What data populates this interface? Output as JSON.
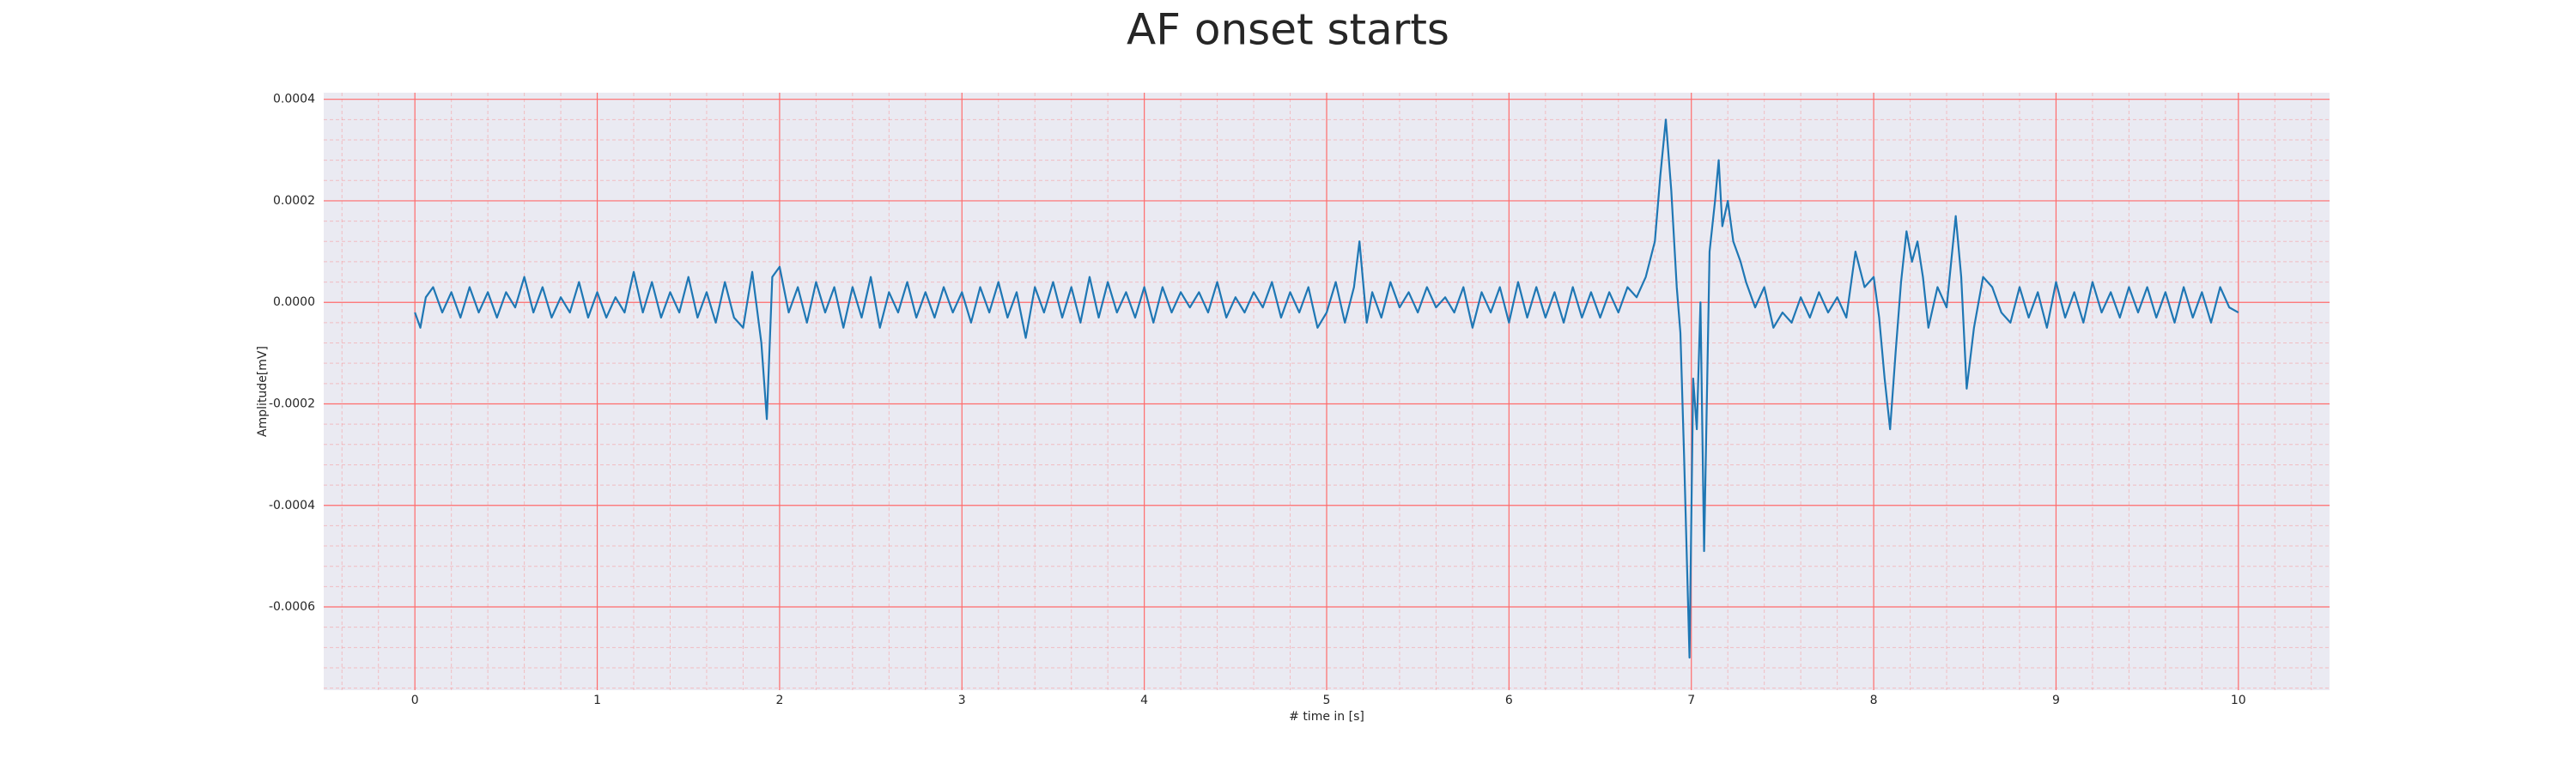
{
  "chart_data": {
    "type": "line",
    "title": "AF onset starts",
    "xlabel": "# time in [s]",
    "ylabel": "Amplitude[mV]",
    "xlim": [
      -0.5,
      10.5
    ],
    "ylim": [
      -0.000764,
      0.000413
    ],
    "xticks": [
      0,
      1,
      2,
      3,
      4,
      5,
      6,
      7,
      8,
      9,
      10
    ],
    "yticks": [
      0.0004,
      0.0002,
      {
        "value": 0,
        "label": "0.0000"
      },
      -0.0002,
      -0.0004,
      -0.0006
    ],
    "grid": true,
    "grid_color": "#ff6b6b",
    "minor_grid": true,
    "minor_divisions": 5,
    "background": "#eaeaf2",
    "series": [
      {
        "color": "#1f77b4",
        "x": [
          0,
          0.03,
          0.06,
          0.1,
          0.15,
          0.2,
          0.25,
          0.3,
          0.35,
          0.4,
          0.45,
          0.5,
          0.55,
          0.6,
          0.65,
          0.7,
          0.75,
          0.8,
          0.85,
          0.9,
          0.95,
          1,
          1.05,
          1.1,
          1.15,
          1.2,
          1.25,
          1.3,
          1.35,
          1.4,
          1.45,
          1.5,
          1.55,
          1.6,
          1.65,
          1.7,
          1.75,
          1.8,
          1.85,
          1.9,
          1.93,
          1.96,
          2,
          2.05,
          2.1,
          2.15,
          2.2,
          2.25,
          2.3,
          2.35,
          2.4,
          2.45,
          2.5,
          2.55,
          2.6,
          2.65,
          2.7,
          2.75,
          2.8,
          2.85,
          2.9,
          2.95,
          3,
          3.05,
          3.1,
          3.15,
          3.2,
          3.25,
          3.3,
          3.35,
          3.4,
          3.45,
          3.5,
          3.55,
          3.6,
          3.65,
          3.7,
          3.75,
          3.8,
          3.85,
          3.9,
          3.95,
          4,
          4.05,
          4.1,
          4.15,
          4.2,
          4.25,
          4.3,
          4.35,
          4.4,
          4.45,
          4.5,
          4.55,
          4.6,
          4.65,
          4.7,
          4.75,
          4.8,
          4.85,
          4.9,
          4.95,
          5,
          5.05,
          5.1,
          5.15,
          5.18,
          5.22,
          5.25,
          5.3,
          5.35,
          5.4,
          5.45,
          5.5,
          5.55,
          5.6,
          5.65,
          5.7,
          5.75,
          5.8,
          5.85,
          5.9,
          5.95,
          6,
          6.05,
          6.1,
          6.15,
          6.2,
          6.25,
          6.3,
          6.35,
          6.4,
          6.45,
          6.5,
          6.55,
          6.6,
          6.65,
          6.7,
          6.75,
          6.8,
          6.83,
          6.86,
          6.89,
          6.92,
          6.94,
          6.96,
          6.99,
          7.01,
          7.03,
          7.05,
          7.07,
          7.1,
          7.13,
          7.15,
          7.17,
          7.2,
          7.23,
          7.27,
          7.3,
          7.35,
          7.4,
          7.45,
          7.5,
          7.55,
          7.6,
          7.65,
          7.7,
          7.75,
          7.8,
          7.85,
          7.9,
          7.95,
          8,
          8.03,
          8.06,
          8.09,
          8.12,
          8.15,
          8.18,
          8.21,
          8.24,
          8.27,
          8.3,
          8.35,
          8.4,
          8.45,
          8.48,
          8.51,
          8.55,
          8.6,
          8.65,
          8.7,
          8.75,
          8.8,
          8.85,
          8.9,
          8.95,
          9,
          9.05,
          9.1,
          9.15,
          9.2,
          9.25,
          9.3,
          9.35,
          9.4,
          9.45,
          9.5,
          9.55,
          9.6,
          9.65,
          9.7,
          9.75,
          9.8,
          9.85,
          9.9,
          9.95,
          10
        ],
        "values": [
          -2e-05,
          -5e-05,
          1e-05,
          3e-05,
          -2e-05,
          2e-05,
          -3e-05,
          3e-05,
          -2e-05,
          2e-05,
          -3e-05,
          2e-05,
          -1e-05,
          5e-05,
          -2e-05,
          3e-05,
          -3e-05,
          1e-05,
          -2e-05,
          4e-05,
          -3e-05,
          2e-05,
          -3e-05,
          1e-05,
          -2e-05,
          6e-05,
          -2e-05,
          4e-05,
          -3e-05,
          2e-05,
          -2e-05,
          5e-05,
          -3e-05,
          2e-05,
          -4e-05,
          4e-05,
          -3e-05,
          -5e-05,
          6e-05,
          -8e-05,
          -0.00023,
          5e-05,
          7e-05,
          -2e-05,
          3e-05,
          -4e-05,
          4e-05,
          -2e-05,
          3e-05,
          -5e-05,
          3e-05,
          -3e-05,
          5e-05,
          -5e-05,
          2e-05,
          -2e-05,
          4e-05,
          -3e-05,
          2e-05,
          -3e-05,
          3e-05,
          -2e-05,
          2e-05,
          -4e-05,
          3e-05,
          -2e-05,
          4e-05,
          -3e-05,
          2e-05,
          -7e-05,
          3e-05,
          -2e-05,
          4e-05,
          -3e-05,
          3e-05,
          -4e-05,
          5e-05,
          -3e-05,
          4e-05,
          -2e-05,
          2e-05,
          -3e-05,
          3e-05,
          -4e-05,
          3e-05,
          -2e-05,
          2e-05,
          -1e-05,
          2e-05,
          -2e-05,
          4e-05,
          -3e-05,
          1e-05,
          -2e-05,
          2e-05,
          -1e-05,
          4e-05,
          -3e-05,
          2e-05,
          -2e-05,
          3e-05,
          -5e-05,
          -2e-05,
          4e-05,
          -4e-05,
          3e-05,
          0.00012,
          -4e-05,
          2e-05,
          -3e-05,
          4e-05,
          -1e-05,
          2e-05,
          -2e-05,
          3e-05,
          -1e-05,
          1e-05,
          -2e-05,
          3e-05,
          -5e-05,
          2e-05,
          -2e-05,
          3e-05,
          -4e-05,
          4e-05,
          -3e-05,
          3e-05,
          -3e-05,
          2e-05,
          -4e-05,
          3e-05,
          -3e-05,
          2e-05,
          -3e-05,
          2e-05,
          -2e-05,
          3e-05,
          1e-05,
          5e-05,
          0.00012,
          0.00025,
          0.00036,
          0.00022,
          3e-05,
          -6e-05,
          -0.0003,
          -0.0007,
          -0.00015,
          -0.00025,
          0,
          -0.00049,
          0.0001,
          0.0002,
          0.00028,
          0.00015,
          0.0002,
          0.00012,
          8e-05,
          4e-05,
          -1e-05,
          3e-05,
          -5e-05,
          -2e-05,
          -4e-05,
          1e-05,
          -3e-05,
          2e-05,
          -2e-05,
          1e-05,
          -3e-05,
          0.0001,
          3e-05,
          5e-05,
          -3e-05,
          -0.00015,
          -0.00025,
          -0.0001,
          4e-05,
          0.00014,
          8e-05,
          0.00012,
          5e-05,
          -5e-05,
          3e-05,
          -1e-05,
          0.00017,
          5e-05,
          -0.00017,
          -5e-05,
          5e-05,
          3e-05,
          -2e-05,
          -4e-05,
          3e-05,
          -3e-05,
          2e-05,
          -5e-05,
          4e-05,
          -3e-05,
          2e-05,
          -4e-05,
          4e-05,
          -2e-05,
          2e-05,
          -3e-05,
          3e-05,
          -2e-05,
          3e-05,
          -3e-05,
          2e-05,
          -4e-05,
          3e-05,
          -3e-05,
          2e-05,
          -4e-05,
          3e-05,
          -1e-05,
          -2e-05
        ]
      }
    ]
  }
}
